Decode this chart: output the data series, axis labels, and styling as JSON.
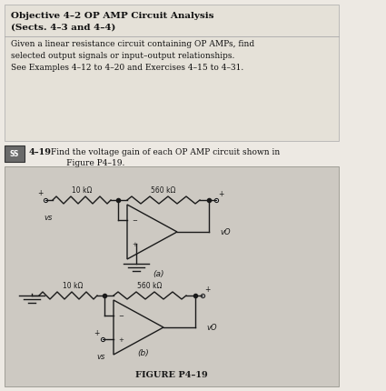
{
  "bg_color": "#ede9e3",
  "header_bg": "#e5e1d8",
  "circuit_bg": "#cdc9c2",
  "title_line1": "Objective 4–2 OP AMP Circuit Analysis",
  "title_line2": "(Sects. 4–3 and 4–4)",
  "body_text": "Given a linear resistance circuit containing OP AMPs, find\nselected output signals or input–output relationships.\nSee Examples 4–12 to 4–20 and Exercises 4–15 to 4–31.",
  "problem_ss": "SS",
  "problem_num": "4–19",
  "problem_text": " Find the voltage gain of each OP AMP circuit shown in\n       Figure P4–19.",
  "figure_label": "FIGURE P4–19",
  "r1_label": "10 kΩ",
  "r2_label": "560 kΩ",
  "vs_label": "vs",
  "vo_label": "vO",
  "a_label": "(a)",
  "b_label": "(b)"
}
